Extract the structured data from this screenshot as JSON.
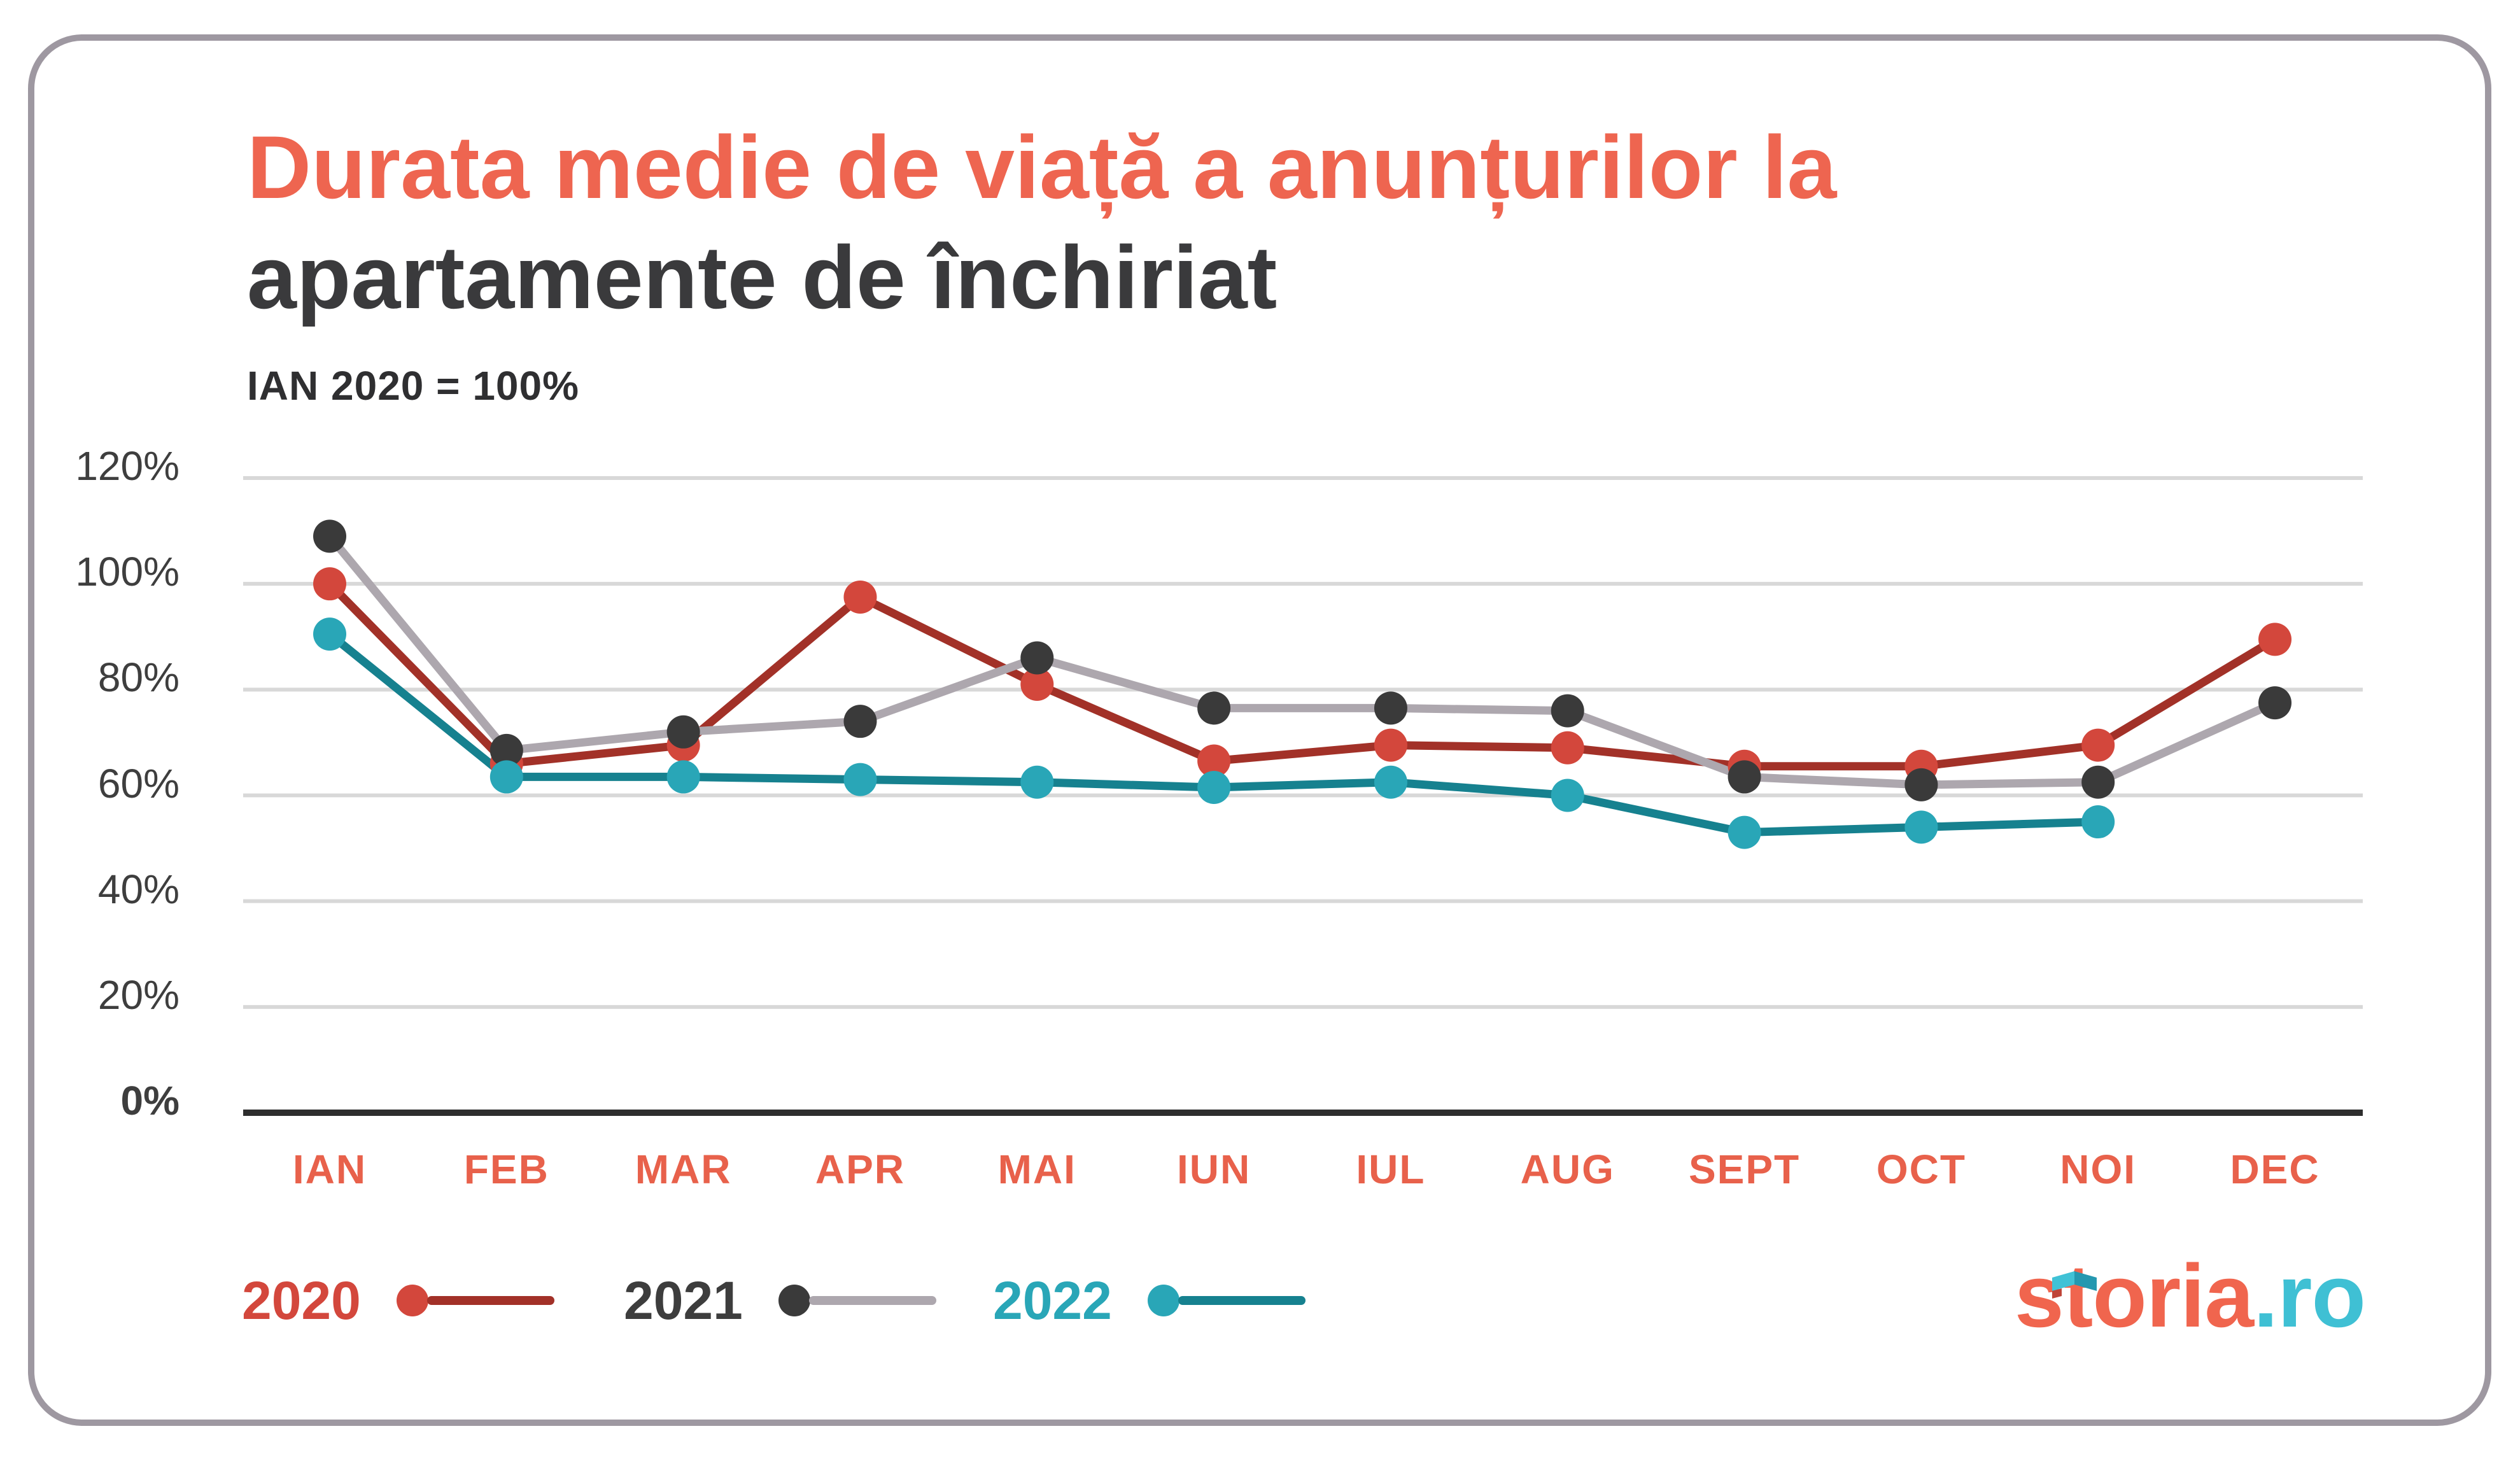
{
  "header": {
    "title_line1": "Durata medie de viață a anunțurilor la",
    "title_line2": "apartamente de închiriat",
    "subtitle": "IAN 2020 = 100%"
  },
  "branding": {
    "logo_text": "storia",
    "logo_suffix": ".ro"
  },
  "colors": {
    "title_accent": "#ee6550",
    "title_dark": "#3a3a3c",
    "axis_label": "#3e3e3e",
    "month_label": "#e8614b",
    "gridline": "#d8d8d8",
    "axis_line": "#2e2e2e",
    "card_border": "#9e98a1",
    "logo_coral": "#f0654e",
    "logo_teal": "#3fc0d4"
  },
  "chart_data": {
    "type": "line",
    "title": "Durata medie de viață a anunțurilor la apartamente de închiriat",
    "subtitle": "IAN 2020 = 100%",
    "categories": [
      "IAN",
      "FEB",
      "MAR",
      "APR",
      "MAI",
      "IUN",
      "IUL",
      "AUG",
      "SEPT",
      "OCT",
      "NOI",
      "DEC"
    ],
    "series": [
      {
        "name": "2020",
        "color_dot": "#d3473c",
        "color_line": "#a23128",
        "values": [
          100,
          66,
          69.5,
          97.5,
          81,
          66.5,
          69.5,
          69,
          65.5,
          65.5,
          69.5,
          89.5
        ]
      },
      {
        "name": "2021",
        "color_dot": "#3a3a3a",
        "color_line": "#ada7ae",
        "values": [
          109,
          68.5,
          72,
          74,
          86,
          76.5,
          76.5,
          76,
          63.5,
          62,
          62.5,
          77.5
        ]
      },
      {
        "name": "2022",
        "color_dot": "#29a6b7",
        "color_line": "#16818f",
        "values": [
          90.5,
          63.5,
          63.5,
          63,
          62.5,
          61.5,
          62.5,
          60,
          53,
          54,
          55,
          null
        ]
      }
    ],
    "yticks": [
      {
        "label": "120%",
        "value": 120
      },
      {
        "label": "100%",
        "value": 100
      },
      {
        "label": "80%",
        "value": 80
      },
      {
        "label": "60%",
        "value": 60
      },
      {
        "label": "40%",
        "value": 40
      },
      {
        "label": "20%",
        "value": 20
      },
      {
        "label": "0%",
        "value": 0
      }
    ],
    "ylim": [
      0,
      120
    ],
    "grid": true,
    "legend_position": "bottom-left"
  }
}
